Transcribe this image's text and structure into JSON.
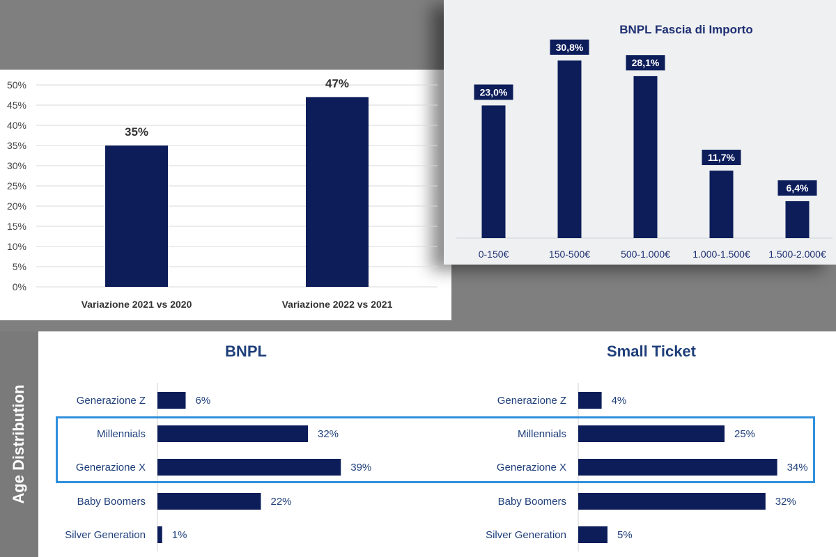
{
  "colors": {
    "bar": "#0c1d5a",
    "accent_box": "#2f8fdc",
    "title_blue": "#1f3f7a"
  },
  "chart_data": [
    {
      "type": "bar",
      "title": "",
      "categories": [
        "Variazione 2021 vs 2020",
        "Variazione 2022 vs 2021"
      ],
      "values": [
        35,
        47
      ],
      "value_labels": [
        "35%",
        "47%"
      ],
      "ylim": [
        0,
        50
      ],
      "yticks": [
        "0%",
        "5%",
        "10%",
        "15%",
        "20%",
        "25%",
        "30%",
        "35%",
        "40%",
        "45%",
        "50%"
      ],
      "grid": true
    },
    {
      "type": "bar",
      "title": "BNPL Fascia di Importo",
      "categories": [
        "0-150€",
        "150-500€",
        "500-1.000€",
        "1.000-1.500€",
        "1.500-2.000€"
      ],
      "values": [
        23.0,
        30.8,
        28.1,
        11.7,
        6.4
      ],
      "value_labels": [
        "23,0%",
        "30,8%",
        "28,1%",
        "11,7%",
        "6,4%"
      ]
    },
    {
      "type": "bar",
      "orientation": "horizontal",
      "title": "BNPL",
      "categories": [
        "Generazione Z",
        "Millennials",
        "Generazione X",
        "Baby Boomers",
        "Silver Generation"
      ],
      "values": [
        6,
        32,
        39,
        22,
        1
      ],
      "value_labels": [
        "6%",
        "32%",
        "39%",
        "22%",
        "1%"
      ]
    },
    {
      "type": "bar",
      "orientation": "horizontal",
      "title": "Small Ticket",
      "categories": [
        "Generazione Z",
        "Millennials",
        "Generazione X",
        "Baby Boomers",
        "Silver Generation"
      ],
      "values": [
        4,
        25,
        34,
        32,
        5
      ],
      "value_labels": [
        "4%",
        "25%",
        "34%",
        "32%",
        "5%"
      ]
    }
  ],
  "sidebar_label": "Age Distribution"
}
